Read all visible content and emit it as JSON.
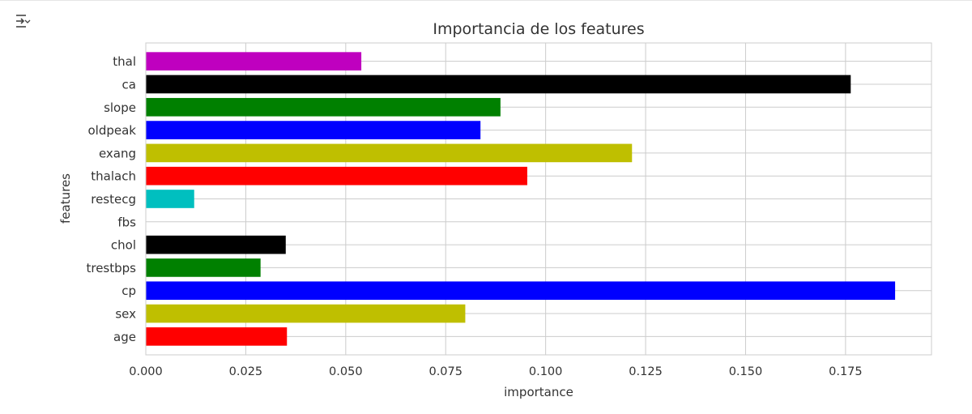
{
  "toolbar": {
    "output_toggle_icon": "output-collapse-icon"
  },
  "colors": {
    "grid": "#cccccc",
    "axis_frame": "#cccccc",
    "text": "#333333",
    "background": "#ffffff"
  },
  "chart_data": {
    "type": "bar",
    "orientation": "horizontal",
    "title": "Importancia de los features",
    "xlabel": "importance",
    "ylabel": "features",
    "categories": [
      "age",
      "sex",
      "cp",
      "trestbps",
      "chol",
      "fbs",
      "restecg",
      "thalach",
      "exang",
      "oldpeak",
      "slope",
      "ca",
      "thal"
    ],
    "values": [
      0.0353,
      0.0799,
      0.1874,
      0.0287,
      0.035,
      0.0,
      0.0121,
      0.0954,
      0.1216,
      0.0837,
      0.0887,
      0.1763,
      0.0539
    ],
    "bar_colors": [
      "#ff0000",
      "#bfbf00",
      "#0000ff",
      "#008000",
      "#000000",
      "#bf00bf",
      "#00bfbf",
      "#ff0000",
      "#bfbf00",
      "#0000ff",
      "#008000",
      "#000000",
      "#bf00bf"
    ],
    "xlim": [
      0,
      0.1965
    ],
    "xticks": [
      0.0,
      0.025,
      0.05,
      0.075,
      0.1,
      0.125,
      0.15,
      0.175
    ],
    "xtick_labels": [
      "0.000",
      "0.025",
      "0.050",
      "0.075",
      "0.100",
      "0.125",
      "0.150",
      "0.175"
    ],
    "grid": true
  }
}
